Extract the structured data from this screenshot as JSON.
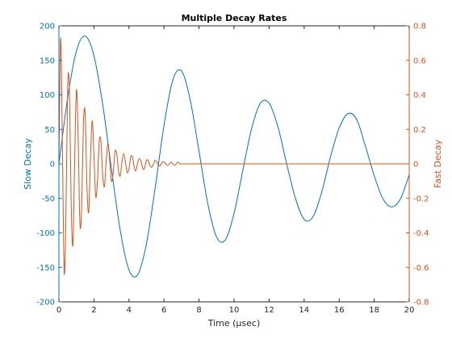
{
  "chart_data": {
    "type": "line",
    "title": "Multiple Decay Rates",
    "xlabel": "Time (μsec)",
    "ylabel_left": "Slow Decay",
    "ylabel_right": "Fast Decay",
    "xlim": [
      0,
      20
    ],
    "ylim_left": [
      -200,
      200
    ],
    "ylim_right": [
      -0.8,
      0.8
    ],
    "x_ticks": [
      "0",
      "2",
      "4",
      "6",
      "8",
      "10",
      "12",
      "14",
      "16",
      "18",
      "20"
    ],
    "y_ticks_left": [
      "-200",
      "-150",
      "-100",
      "-50",
      "0",
      "50",
      "100",
      "150",
      "200"
    ],
    "y_ticks_right": [
      "-0.8",
      "-0.6",
      "-0.4",
      "-0.2",
      "0",
      "0.2",
      "0.4",
      "0.6",
      "0.8"
    ],
    "grid": false,
    "colors": {
      "left": "#0072BD",
      "right": "#D95319",
      "axis": "#262626"
    },
    "series": [
      {
        "axis": "left",
        "x": [
          0,
          0.5,
          1,
          1.5,
          2,
          2.5,
          3,
          3.5,
          4,
          4.5,
          5,
          5.5,
          6,
          6.5,
          7,
          7.5,
          8,
          8.5,
          9,
          9.5,
          10,
          10.5,
          11,
          11.5,
          12,
          12.5,
          13,
          13.5,
          14,
          14.5,
          15,
          15.5,
          16,
          16.5,
          17,
          17.5,
          18,
          18.5,
          19,
          19.5,
          20
        ],
        "y": [
          0,
          95.8,
          163.7,
          185.1,
          156.8,
          86.0,
          -7.3,
          -96.4,
          -153.7,
          -160.6,
          -115.4,
          -33.7,
          55.8,
          121.3,
          134.8,
          91.9,
          18.1,
          -57.8,
          -105.9,
          -110.3,
          -71.6,
          -9.4,
          51.0,
          87.8,
          87.8,
          54.1,
          0.5,
          -49.5,
          -80.4,
          -76.9,
          -41.3,
          9.7,
          52.0,
          72.8,
          64.3,
          25.6,
          -17.1,
          -50.8,
          -62.4,
          -50.6,
          -15.7
        ]
      },
      {
        "axis": "right",
        "x": [
          0,
          0.1,
          0.2,
          0.3,
          0.4,
          0.5,
          0.6,
          0.7,
          0.8,
          0.9,
          1.0,
          1.1,
          1.2,
          1.3,
          1.4,
          1.5,
          1.6,
          1.7,
          1.8,
          1.9,
          2.0,
          2.1,
          2.2,
          2.3,
          2.4,
          2.5,
          2.6,
          2.7,
          2.8,
          2.9,
          3.0,
          3.1,
          3.2,
          3.3,
          3.4,
          3.5,
          3.6,
          3.7,
          3.8,
          3.9,
          4.0,
          4.1,
          4.2,
          4.3,
          4.4,
          4.5,
          4.6,
          4.7,
          4.8,
          4.9,
          5.0,
          5.1,
          5.2,
          5.3,
          5.4,
          5.5,
          5.6,
          5.7,
          5.8,
          5.9,
          6.0,
          6.1,
          6.2,
          6.3,
          6.4,
          6.5,
          6.6,
          6.7,
          6.8,
          6.9,
          7.0,
          7.1,
          7.2,
          7.3,
          7.4,
          7.5,
          7.6,
          7.7,
          7.8,
          7.9,
          8.0,
          8.1,
          8.2,
          8.3,
          8.4,
          8.5,
          8.6,
          8.7,
          8.8,
          8.9,
          9.0,
          9.1,
          9.2,
          9.3,
          9.4,
          9.5,
          9.6,
          9.7,
          9.8,
          9.9,
          10.0,
          10.5,
          11,
          11.5,
          12,
          12.5,
          13,
          13.5,
          14,
          14.5,
          15,
          15.5,
          16,
          16.5,
          17,
          17.5,
          18,
          18.5,
          19,
          19.5,
          20
        ],
        "y": [
          0,
          0.73,
          0.09,
          -0.63,
          -0.3,
          0.45,
          0.43,
          -0.23,
          -0.47,
          0.03,
          0.43,
          0.14,
          -0.35,
          -0.25,
          0.24,
          0.29,
          -0.13,
          -0.28,
          0.03,
          0.25,
          0.05,
          -0.19,
          -0.1,
          0.13,
          0.13,
          -0.07,
          -0.13,
          0.02,
          0.12,
          0.02,
          -0.1,
          -0.05,
          0.07,
          0.06,
          -0.04,
          -0.07,
          0.01,
          0.06,
          0.01,
          -0.05,
          -0.03,
          0.04,
          0.04,
          -0.02,
          -0.04,
          0.01,
          0.03,
          0.01,
          -0.03,
          -0.02,
          0.02,
          0.02,
          -0.01,
          -0.02,
          0,
          0.02,
          0.01,
          -0.01,
          -0.01,
          0.01,
          0.01,
          0,
          -0.01,
          0,
          0.01,
          0,
          -0.01,
          0,
          0.01,
          0,
          0,
          0,
          0,
          0,
          0,
          0,
          0,
          0,
          0,
          0,
          0,
          0,
          0,
          0,
          0,
          0,
          0,
          0,
          0,
          0,
          0,
          0,
          0,
          0,
          0,
          0,
          0,
          0,
          0,
          0,
          0,
          0,
          0,
          0,
          0,
          0,
          0,
          0,
          0,
          0,
          0,
          0,
          0,
          0,
          0,
          0,
          0,
          0,
          0,
          0,
          0
        ]
      }
    ]
  }
}
